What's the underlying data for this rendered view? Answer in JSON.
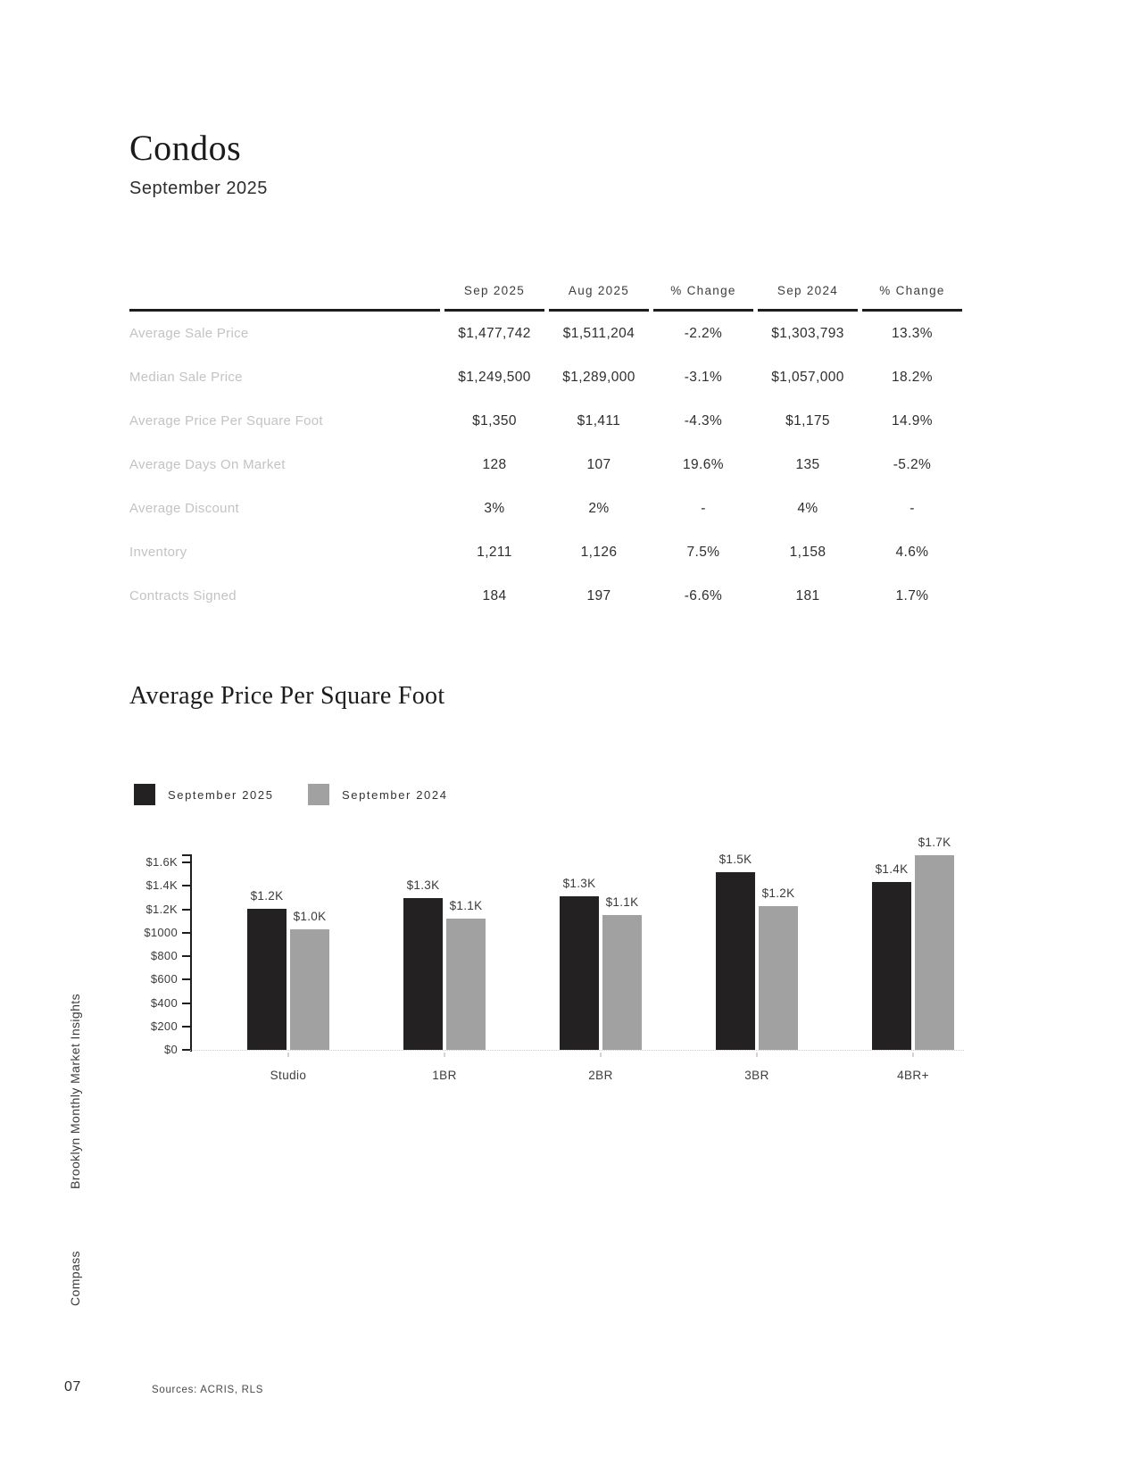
{
  "page": {
    "title": "Condos",
    "subtitle": "September 2025",
    "sidebar_title": "Brooklyn Monthly Market Insights",
    "sidebar_brand": "Compass",
    "page_number": "07",
    "sources": "Sources: ACRIS, RLS"
  },
  "table": {
    "columns": [
      "Sep 2025",
      "Aug 2025",
      "% Change",
      "Sep 2024",
      "% Change"
    ],
    "rows": [
      {
        "label": "Average Sale Price",
        "values": [
          "$1,477,742",
          "$1,511,204",
          "-2.2%",
          "$1,303,793",
          "13.3%"
        ]
      },
      {
        "label": "Median Sale Price",
        "values": [
          "$1,249,500",
          "$1,289,000",
          "-3.1%",
          "$1,057,000",
          "18.2%"
        ]
      },
      {
        "label": "Average Price Per Square Foot",
        "values": [
          "$1,350",
          "$1,411",
          "-4.3%",
          "$1,175",
          "14.9%"
        ]
      },
      {
        "label": "Average Days On Market",
        "values": [
          "128",
          "107",
          "19.6%",
          "135",
          "-5.2%"
        ]
      },
      {
        "label": "Average Discount",
        "values": [
          "3%",
          "2%",
          "-",
          "4%",
          "-"
        ]
      },
      {
        "label": "Inventory",
        "values": [
          "1,211",
          "1,126",
          "7.5%",
          "1,158",
          "4.6%"
        ]
      },
      {
        "label": "Contracts Signed",
        "values": [
          "184",
          "197",
          "-6.6%",
          "181",
          "1.7%"
        ]
      }
    ]
  },
  "chart_data": {
    "type": "bar",
    "title": "Average Price Per Square Foot",
    "categories": [
      "Studio",
      "1BR",
      "2BR",
      "3BR",
      "4BR+"
    ],
    "series": [
      {
        "name": "September 2025",
        "color": "#242122",
        "values": [
          1200,
          1295,
          1310,
          1515,
          1430
        ],
        "labels": [
          "$1.2K",
          "$1.3K",
          "$1.3K",
          "$1.5K",
          "$1.4K"
        ]
      },
      {
        "name": "September 2024",
        "color": "#a1a1a1",
        "values": [
          1030,
          1120,
          1150,
          1225,
          1660
        ],
        "labels": [
          "$1.0K",
          "$1.1K",
          "$1.1K",
          "$1.2K",
          "$1.7K"
        ]
      }
    ],
    "y_ticks": [
      {
        "label": "$1.6K",
        "value": 1600
      },
      {
        "label": "$1.4K",
        "value": 1400
      },
      {
        "label": "$1.2K",
        "value": 1200
      },
      {
        "label": "$1000",
        "value": 1000
      },
      {
        "label": "$800",
        "value": 800
      },
      {
        "label": "$600",
        "value": 600
      },
      {
        "label": "$400",
        "value": 400
      },
      {
        "label": "$200",
        "value": 200
      },
      {
        "label": "$0",
        "value": 0
      }
    ],
    "xlabel": "",
    "ylabel": "",
    "ylim": [
      0,
      1680
    ],
    "grid": false,
    "legend_position": "top-left"
  }
}
